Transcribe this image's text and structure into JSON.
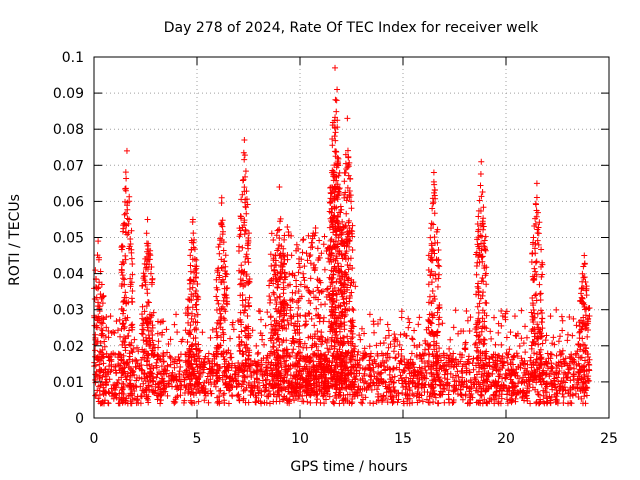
{
  "chart_data": {
    "type": "scatter",
    "title": "Day 278 of 2024, Rate Of TEC Index for receiver welk",
    "xlabel": "GPS time / hours",
    "ylabel": "ROTI / TECUs",
    "xlim": [
      0,
      25
    ],
    "ylim": [
      0,
      0.1
    ],
    "xticks": [
      "0",
      "5",
      "10",
      "15",
      "20",
      "25"
    ],
    "yticks": [
      "0",
      "0.01",
      "0.02",
      "0.03",
      "0.04",
      "0.05",
      "0.06",
      "0.07",
      "0.08",
      "0.09",
      "0.1"
    ],
    "grid": true,
    "marker": "+",
    "color": "#ff0000",
    "series": [
      {
        "name": "ROTI",
        "peaks": [
          {
            "x": 0.2,
            "y": 0.049
          },
          {
            "x": 1.6,
            "y": 0.074
          },
          {
            "x": 2.6,
            "y": 0.055
          },
          {
            "x": 4.8,
            "y": 0.055
          },
          {
            "x": 6.2,
            "y": 0.061
          },
          {
            "x": 7.3,
            "y": 0.077
          },
          {
            "x": 9.0,
            "y": 0.064
          },
          {
            "x": 11.7,
            "y": 0.097
          },
          {
            "x": 11.8,
            "y": 0.091
          },
          {
            "x": 12.3,
            "y": 0.083
          },
          {
            "x": 16.5,
            "y": 0.068
          },
          {
            "x": 18.8,
            "y": 0.071
          },
          {
            "x": 21.5,
            "y": 0.065
          },
          {
            "x": 23.8,
            "y": 0.045
          }
        ],
        "baseline": {
          "x_start": 0,
          "x_end": 24,
          "median": 0.012,
          "typical_max": 0.03
        }
      }
    ]
  }
}
